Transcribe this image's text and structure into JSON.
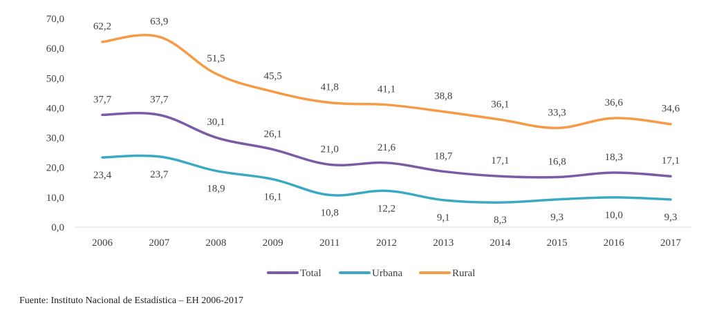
{
  "chart_data": {
    "type": "line",
    "categories": [
      "2006",
      "2007",
      "2008",
      "2009",
      "2011",
      "2012",
      "2013",
      "2014",
      "2015",
      "2016",
      "2017"
    ],
    "series": [
      {
        "name": "Total",
        "color": "#7a5ba6",
        "values": [
          37.7,
          37.7,
          30.1,
          26.1,
          21.0,
          21.6,
          18.7,
          17.1,
          16.8,
          18.3,
          17.1
        ],
        "labels": [
          "37,7",
          "37,7",
          "30,1",
          "26,1",
          "21,0",
          "21,6",
          "18,7",
          "17,1",
          "16,8",
          "18,3",
          "17,1"
        ],
        "label_pos": "above"
      },
      {
        "name": "Urbana",
        "color": "#3ba9c4",
        "values": [
          23.4,
          23.7,
          18.9,
          16.1,
          10.8,
          12.2,
          9.1,
          8.3,
          9.3,
          10.0,
          9.3
        ],
        "labels": [
          "23,4",
          "23,7",
          "18,9",
          "16,1",
          "10,8",
          "12,2",
          "9,1",
          "8,3",
          "9,3",
          "10,0",
          "9,3"
        ],
        "label_pos": "below"
      },
      {
        "name": "Rural",
        "color": "#f79a46",
        "values": [
          62.2,
          63.9,
          51.5,
          45.5,
          41.8,
          41.1,
          38.8,
          36.1,
          33.3,
          36.6,
          34.6
        ],
        "labels": [
          "62,2",
          "63,9",
          "51,5",
          "45,5",
          "41,8",
          "41,1",
          "38,8",
          "36,1",
          "33,3",
          "36,6",
          "34,6"
        ],
        "label_pos": "above"
      }
    ],
    "yticks": [
      "0,0",
      "10,0",
      "20,0",
      "30,0",
      "40,0",
      "50,0",
      "60,0",
      "70,0"
    ],
    "ylim": [
      0,
      70
    ],
    "grid": false,
    "legend_placement": "bottom"
  },
  "source": "Fuente: Instituto Nacional de Estadística – EH 2006-2017"
}
